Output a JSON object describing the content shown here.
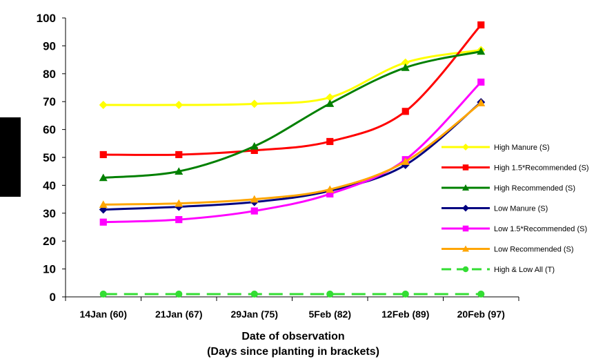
{
  "chart_data": {
    "type": "line",
    "title": "",
    "xlabel_line1": "Date of observation",
    "xlabel_line2": "(Days since planting in brackets)",
    "ylabel": "",
    "ylim": [
      0,
      100
    ],
    "yticks": [
      0,
      10,
      20,
      30,
      40,
      50,
      60,
      70,
      80,
      90,
      100
    ],
    "categories": [
      "14Jan (60)",
      "21Jan (67)",
      "29Jan (75)",
      "5Feb (82)",
      "12Feb (89)",
      "20Feb (97)"
    ],
    "grid": false,
    "legend_position": "right",
    "series": [
      {
        "name": "High Manure (S)",
        "color": "#ffff00",
        "marker": "diamond",
        "dashed": false,
        "values": [
          68.8,
          68.8,
          69.2,
          71.5,
          84,
          88.5
        ]
      },
      {
        "name": "High 1.5*Recommended (S)",
        "color": "#ff0000",
        "marker": "square",
        "dashed": false,
        "values": [
          51,
          51,
          52.5,
          55.7,
          66.5,
          97.5
        ]
      },
      {
        "name": "High Recommended (S)",
        "color": "#008000",
        "marker": "triangle",
        "dashed": false,
        "values": [
          42.7,
          45,
          54,
          69.3,
          82.2,
          88
        ]
      },
      {
        "name": "Low Manure (S)",
        "color": "#000080",
        "marker": "diamond",
        "dashed": false,
        "values": [
          31.3,
          32.3,
          34,
          38,
          47.3,
          69.8
        ]
      },
      {
        "name": "Low 1.5*Recommended (S)",
        "color": "#ff00ff",
        "marker": "square",
        "dashed": false,
        "values": [
          26.8,
          27.7,
          30.8,
          36.9,
          49.2,
          77
        ]
      },
      {
        "name": "Low Recommended (S)",
        "color": "#ffa500",
        "marker": "triangle",
        "dashed": false,
        "values": [
          33.1,
          33.5,
          35,
          38.5,
          48.5,
          69.5
        ]
      },
      {
        "name": "High & Low All (T)",
        "color": "#33dd33",
        "marker": "circle",
        "dashed": true,
        "values": [
          1,
          1,
          1,
          1,
          1,
          1
        ]
      }
    ]
  }
}
